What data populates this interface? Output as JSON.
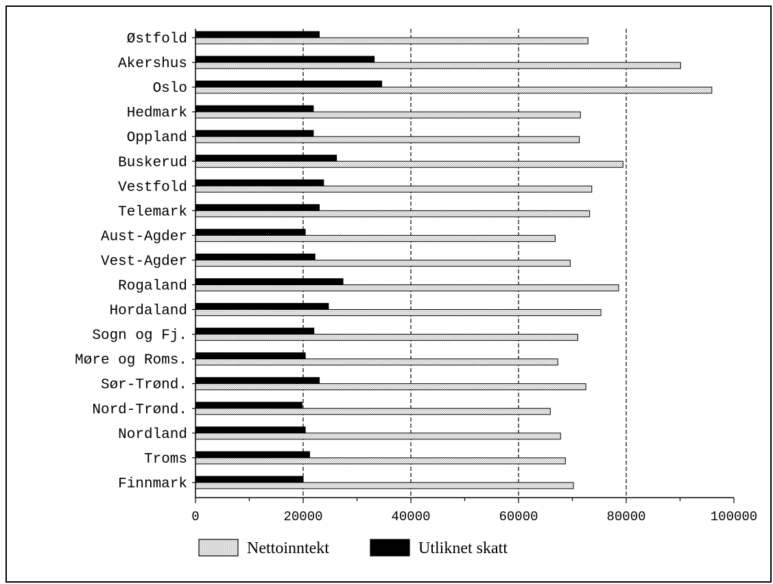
{
  "chart_data": {
    "type": "bar",
    "orientation": "horizontal",
    "title": "",
    "xlabel": "",
    "ylabel": "",
    "xlim": [
      0,
      100000
    ],
    "x_ticks": [
      0,
      20000,
      40000,
      60000,
      80000,
      100000
    ],
    "x_tick_labels": [
      "0",
      "20000",
      "40000",
      "60000",
      "80000",
      "100000"
    ],
    "grid": "dashed vertical at 20000, 40000, 60000, 80000",
    "legend_position": "bottom",
    "categories": [
      "Østfold",
      "Akershus",
      "Oslo",
      "Hedmark",
      "Oppland",
      "Buskerud",
      "Vestfold",
      "Telemark",
      "Aust-Agder",
      "Vest-Agder",
      "Rogaland",
      "Hordaland",
      "Sogn og Fj.",
      "Møre og Roms.",
      "Sør-Trønd.",
      "Nord-Trønd.",
      "Nordland",
      "Troms",
      "Finnmark"
    ],
    "series": [
      {
        "name": "Nettoinntekt",
        "color": "#e2e2e2",
        "pattern": "dotted",
        "values": [
          72900,
          90100,
          95900,
          71500,
          71300,
          79400,
          73600,
          73200,
          66800,
          69600,
          78600,
          75300,
          71000,
          67300,
          72500,
          65900,
          67800,
          68700,
          70200
        ]
      },
      {
        "name": "Utliknet skatt",
        "color": "#000000",
        "values": [
          23000,
          33200,
          34600,
          21900,
          21900,
          26200,
          23800,
          23000,
          20400,
          22200,
          27400,
          24700,
          22000,
          20400,
          23000,
          19800,
          20400,
          21200,
          20000
        ]
      }
    ]
  }
}
